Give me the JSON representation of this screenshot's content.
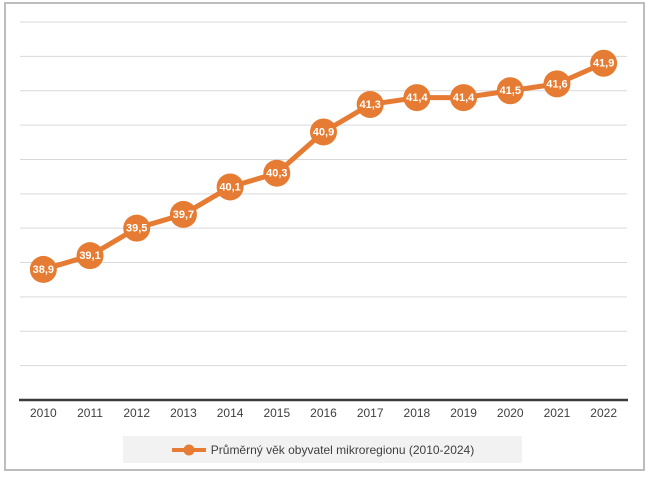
{
  "frame": {
    "background": "#ffffff",
    "border_color": "#bdbdbd"
  },
  "chart_data": {
    "type": "line",
    "title": "",
    "xlabel": "",
    "ylabel": "",
    "categories": [
      "2010",
      "2011",
      "2012",
      "2013",
      "2014",
      "2015",
      "2016",
      "2017",
      "2018",
      "2019",
      "2020",
      "2021",
      "2022"
    ],
    "series": [
      {
        "name": "Průměrný věk obyvatel mikroregionu (2010-2024)",
        "values": [
          38.9,
          39.1,
          39.5,
          39.7,
          40.1,
          40.3,
          40.9,
          41.3,
          41.4,
          41.4,
          41.5,
          41.6,
          41.9
        ],
        "labels": [
          "38,9",
          "39,1",
          "39,5",
          "39,7",
          "40,1",
          "40,3",
          "40,9",
          "41,3",
          "41,4",
          "41,4",
          "41,5",
          "41,6",
          "41,9"
        ],
        "color": "#e67c33"
      }
    ],
    "ylim": [
      37,
      42.5
    ],
    "y_major_unit": 0.5,
    "y_axis_labels_visible": false,
    "grid": true,
    "gridline_color": "#d9d9d9",
    "axis_line_color": "#3b3b3b",
    "tick_label_color": "#3f3f3f",
    "data_label_color": "#ffffff",
    "legend": {
      "position": "bottom",
      "background": "#f2f2f2",
      "marker": "line-with-circle-icon"
    }
  }
}
